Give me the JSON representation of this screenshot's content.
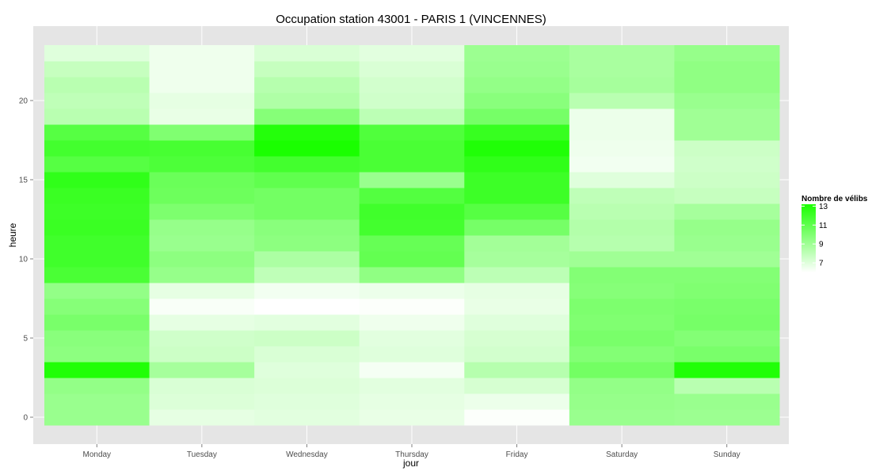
{
  "chart_data": {
    "type": "heatmap",
    "title": "Occupation station 43001 - PARIS 1 (VINCENNES)",
    "xlabel": "jour",
    "ylabel": "heure",
    "days": [
      "Monday",
      "Tuesday",
      "Wednesday",
      "Thursday",
      "Friday",
      "Saturday",
      "Sunday"
    ],
    "hours": [
      0,
      1,
      2,
      3,
      4,
      5,
      6,
      7,
      8,
      9,
      10,
      11,
      12,
      13,
      14,
      15,
      16,
      17,
      18,
      19,
      20,
      21,
      22,
      23
    ],
    "y_ticks": [
      0,
      5,
      10,
      15,
      20
    ],
    "ylim": [
      -0.5,
      23.5
    ],
    "grid": true,
    "legend": {
      "title": "Nombre de vélibs",
      "position": "right",
      "min": 6,
      "max": 13.2,
      "ticks": [
        7,
        9,
        11,
        13
      ],
      "low_color": "#ffffff",
      "high_color": "#1aff00"
    },
    "colors": {
      "panel": "#e5e5e5",
      "grid": "#ffffff"
    },
    "values": [
      [
        9.2,
        6.8,
        6.9,
        6.7,
        6.1,
        9.2,
        9.1
      ],
      [
        9.2,
        7.1,
        7.0,
        6.8,
        6.6,
        9.3,
        9.2
      ],
      [
        9.4,
        7.2,
        7.1,
        6.9,
        7.3,
        9.4,
        8.2
      ],
      [
        13.0,
        8.8,
        7.0,
        6.3,
        8.3,
        10.4,
        13.0
      ],
      [
        9.6,
        7.6,
        7.2,
        7.0,
        7.4,
        9.9,
        10.2
      ],
      [
        9.7,
        7.5,
        7.6,
        6.9,
        7.3,
        10.2,
        9.9
      ],
      [
        10.2,
        6.8,
        6.9,
        6.5,
        7.0,
        10.0,
        10.3
      ],
      [
        9.8,
        6.2,
        5.9,
        6.1,
        6.7,
        10.1,
        10.2
      ],
      [
        9.4,
        6.8,
        6.4,
        6.6,
        6.8,
        9.8,
        10.0
      ],
      [
        11.7,
        9.3,
        8.0,
        9.5,
        8.1,
        9.9,
        9.9
      ],
      [
        12.0,
        9.6,
        8.6,
        10.9,
        8.8,
        9.0,
        9.0
      ],
      [
        12.0,
        9.2,
        9.6,
        10.8,
        8.9,
        8.3,
        9.2
      ],
      [
        12.2,
        9.3,
        9.7,
        11.9,
        10.3,
        8.4,
        9.3
      ],
      [
        12.1,
        10.1,
        10.4,
        12.0,
        11.3,
        8.2,
        8.8
      ],
      [
        12.2,
        10.6,
        10.4,
        11.4,
        12.1,
        8.0,
        7.8
      ],
      [
        12.5,
        10.7,
        11.0,
        9.2,
        12.1,
        7.0,
        7.6
      ],
      [
        11.3,
        11.6,
        11.9,
        11.7,
        12.5,
        6.4,
        7.5
      ],
      [
        11.9,
        11.8,
        13.2,
        11.7,
        13.0,
        6.5,
        7.6
      ],
      [
        11.3,
        10.0,
        12.9,
        11.5,
        12.3,
        6.6,
        9.0
      ],
      [
        8.2,
        6.7,
        9.8,
        8.1,
        10.3,
        6.6,
        9.0
      ],
      [
        8.0,
        6.8,
        8.5,
        7.5,
        9.7,
        8.2,
        9.2
      ],
      [
        8.2,
        6.5,
        8.3,
        7.4,
        9.4,
        8.8,
        9.5
      ],
      [
        7.8,
        6.5,
        7.8,
        7.2,
        9.2,
        8.7,
        9.5
      ],
      [
        7.0,
        6.5,
        7.2,
        6.9,
        9.1,
        8.7,
        9.3
      ]
    ]
  }
}
